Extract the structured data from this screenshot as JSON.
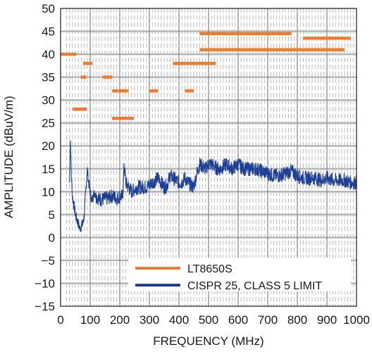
{
  "chart_data": {
    "type": "line",
    "xlabel": "FREQUENCY (MHz)",
    "ylabel": "AMPLITUDE (dBuV/m)",
    "xlim": [
      0,
      1000
    ],
    "ylim": [
      -15,
      50
    ],
    "x_ticks": [
      0,
      100,
      200,
      300,
      400,
      500,
      600,
      700,
      800,
      900,
      1000
    ],
    "y_ticks": [
      -15,
      -10,
      -5,
      0,
      5,
      10,
      15,
      20,
      25,
      30,
      35,
      40,
      45,
      50
    ],
    "x_tick_labels": [
      "0",
      "100",
      "200",
      "300",
      "400",
      "500",
      "600",
      "700",
      "800",
      "900",
      "1000"
    ],
    "y_tick_labels": [
      "−15",
      "−10",
      "−5",
      "0",
      "5",
      "10",
      "15",
      "20",
      "25",
      "30",
      "35",
      "40",
      "45",
      "50"
    ],
    "grid": true,
    "legend_position": "bottom-right",
    "legend": [
      "LT8650S",
      "CISPR 25, CLASS 5 LIMIT"
    ],
    "series": [
      {
        "name": "LT8650S",
        "color": "#ef7b2d",
        "style": "step-segments",
        "segments": [
          {
            "x": [
              0,
              30
            ],
            "y": 40
          },
          {
            "x": [
              30,
              54
            ],
            "y": 40
          },
          {
            "x": [
              41,
              88
            ],
            "y": 28
          },
          {
            "x": [
              68,
              87
            ],
            "y": 35
          },
          {
            "x": [
              76,
              108
            ],
            "y": 38
          },
          {
            "x": [
              142,
              175
            ],
            "y": 35
          },
          {
            "x": [
              174,
              230
            ],
            "y": 32
          },
          {
            "x": [
              174,
              248
            ],
            "y": 26
          },
          {
            "x": [
              300,
              330
            ],
            "y": 32
          },
          {
            "x": [
              420,
              450
            ],
            "y": 32
          },
          {
            "x": [
              380,
              525
            ],
            "y": 38
          },
          {
            "x": [
              470,
              960
            ],
            "y": 41
          },
          {
            "x": [
              470,
              780
            ],
            "y": 44.5
          },
          {
            "x": [
              820,
              980
            ],
            "y": 43.5
          }
        ]
      },
      {
        "name": "CISPR 25, CLASS 5 LIMIT",
        "color": "#1f3f97",
        "style": "noisy-line",
        "x": [
          30,
          33,
          36,
          40,
          45,
          50,
          55,
          60,
          65,
          70,
          75,
          80,
          85,
          90,
          95,
          100,
          105,
          110,
          115,
          120,
          130,
          140,
          150,
          160,
          170,
          180,
          190,
          200,
          210,
          215,
          220,
          230,
          240,
          250,
          260,
          270,
          280,
          290,
          300,
          310,
          320,
          330,
          340,
          350,
          360,
          370,
          380,
          390,
          400,
          410,
          420,
          430,
          440,
          450,
          460,
          470,
          480,
          490,
          500,
          510,
          520,
          530,
          540,
          550,
          560,
          570,
          580,
          590,
          600,
          620,
          640,
          660,
          680,
          700,
          720,
          740,
          760,
          780,
          800,
          820,
          840,
          860,
          880,
          900,
          920,
          940,
          960,
          980,
          1000
        ],
        "values": [
          12,
          22,
          14,
          9,
          7,
          5,
          4,
          3,
          2,
          2.5,
          3,
          5,
          10,
          15,
          12,
          10,
          8,
          9,
          10,
          9,
          8.5,
          8.3,
          8.5,
          8.5,
          9,
          9,
          8.5,
          9,
          9,
          16,
          12,
          11,
          10,
          10.5,
          11,
          11,
          11,
          11,
          11.5,
          12,
          12.5,
          13,
          12,
          11,
          11.5,
          13.5,
          13,
          12.5,
          12,
          12,
          13,
          12,
          11.5,
          11,
          14,
          16,
          15.5,
          15,
          16,
          16,
          15.5,
          15,
          15,
          15.5,
          16,
          15.5,
          15,
          15.5,
          16,
          15,
          15,
          15,
          14.5,
          14,
          13.5,
          13.5,
          14,
          14.5,
          13.5,
          13,
          13,
          13,
          12.5,
          13,
          12.5,
          12.5,
          12.5,
          12,
          12
        ]
      }
    ]
  }
}
